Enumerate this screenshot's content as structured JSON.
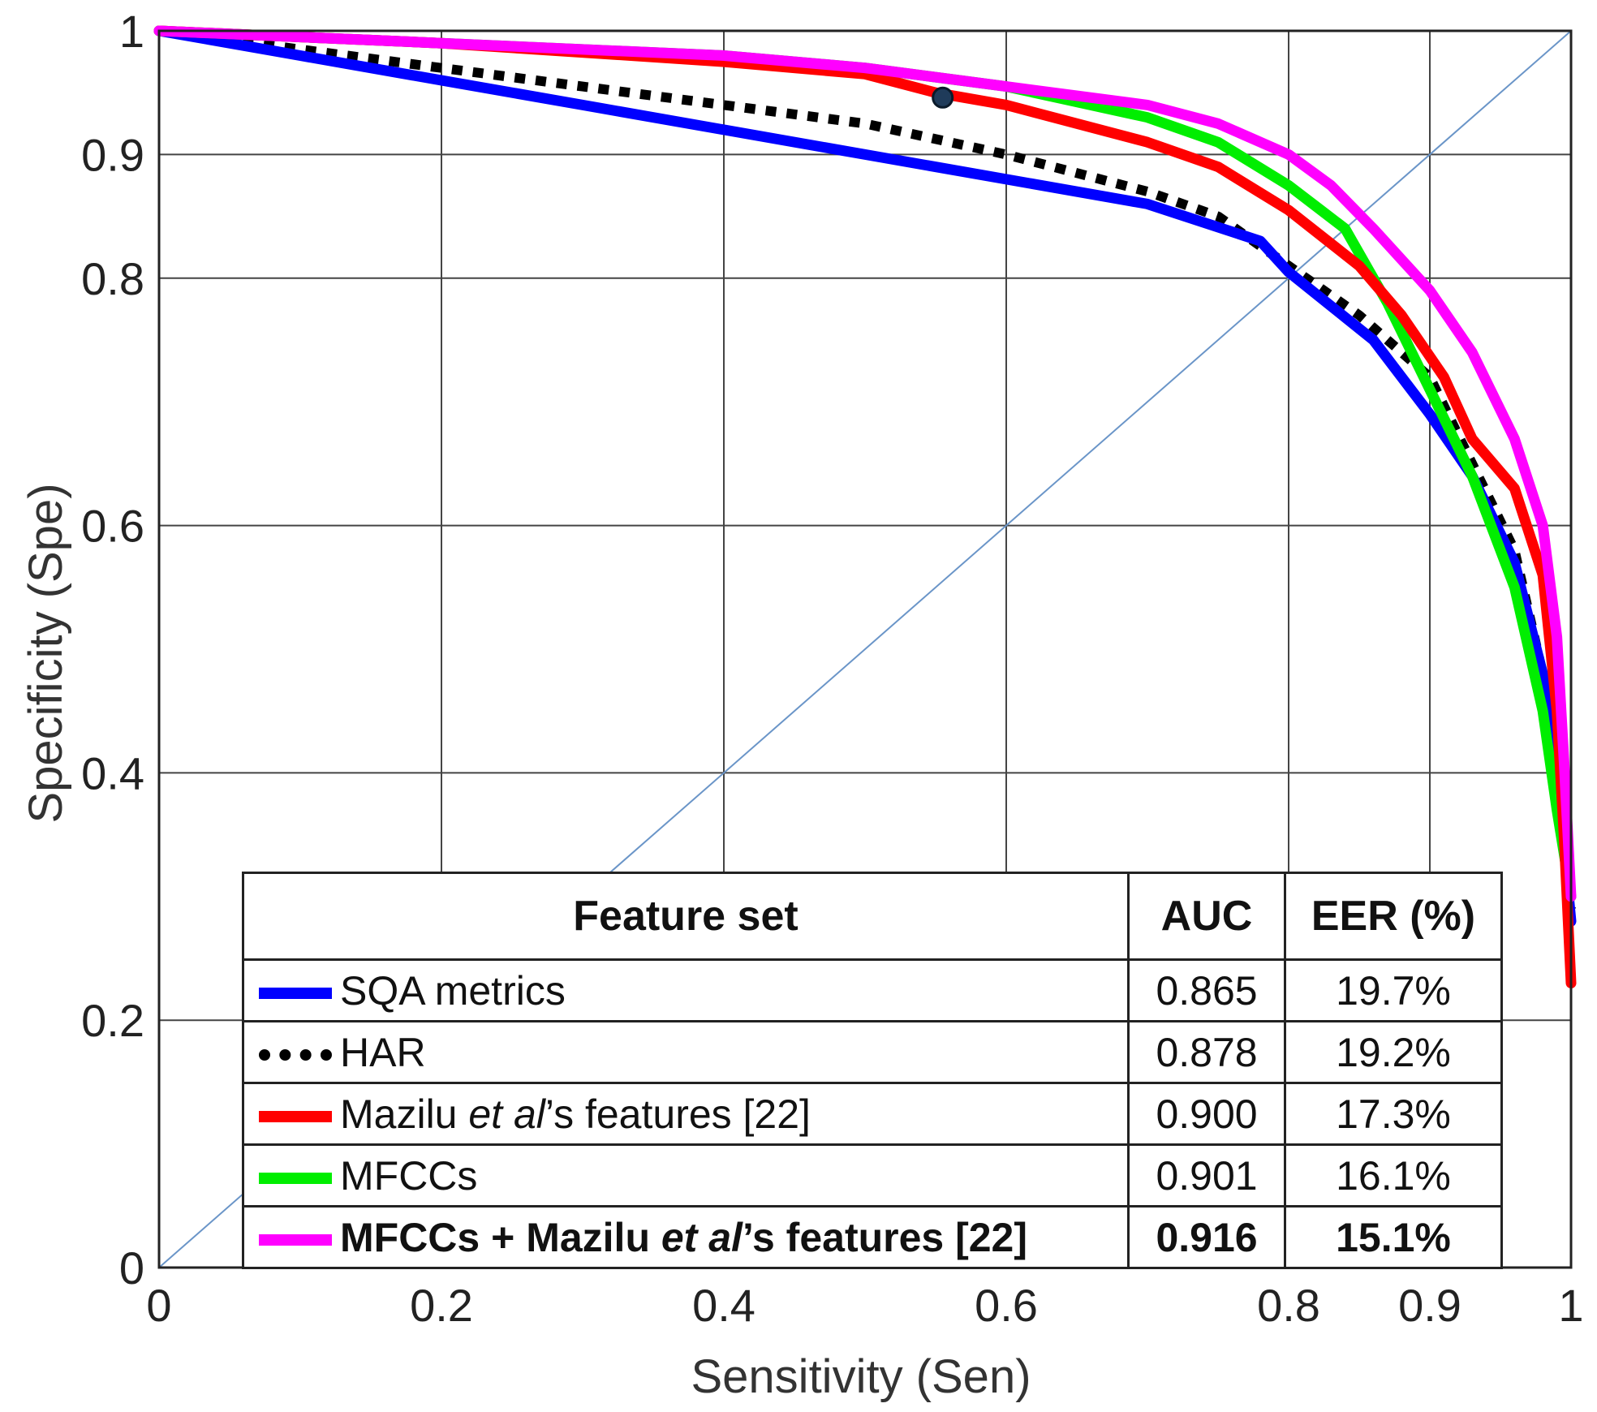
{
  "chart_data": {
    "type": "line",
    "title": "",
    "xlabel": "Sensitivity (Sen)",
    "ylabel": "Specificity (Spe)",
    "xlim": [
      0,
      1
    ],
    "ylim": [
      0,
      1
    ],
    "x_ticks": [
      0,
      0.2,
      0.4,
      0.6,
      0.8,
      0.9,
      1
    ],
    "x_tick_labels": [
      "0",
      "0.2",
      "0.4",
      "0.6",
      "0.8",
      "0.9",
      "1"
    ],
    "y_ticks": [
      0,
      0.2,
      0.4,
      0.6,
      0.8,
      0.9,
      1
    ],
    "y_tick_labels": [
      "0",
      "0.2",
      "0.4",
      "0.6",
      "0.8",
      "0.9",
      "1"
    ],
    "grid": true,
    "diagonal_reference": {
      "color": "#6a95c8",
      "points": [
        [
          0,
          0
        ],
        [
          1,
          1
        ]
      ]
    },
    "marker_point": {
      "x": 0.555,
      "y": 0.946,
      "color": "#1f3b5a"
    },
    "series": [
      {
        "key": "har",
        "color": "#000000",
        "style": "dotted",
        "points": [
          [
            0,
            1
          ],
          [
            0.1,
            0.985
          ],
          [
            0.2,
            0.97
          ],
          [
            0.3,
            0.955
          ],
          [
            0.4,
            0.94
          ],
          [
            0.5,
            0.925
          ],
          [
            0.6,
            0.9
          ],
          [
            0.7,
            0.87
          ],
          [
            0.75,
            0.85
          ],
          [
            0.8,
            0.81
          ],
          [
            0.85,
            0.77
          ],
          [
            0.9,
            0.72
          ],
          [
            0.93,
            0.65
          ],
          [
            0.96,
            0.58
          ],
          [
            0.98,
            0.48
          ],
          [
            0.99,
            0.4
          ],
          [
            1,
            0.29
          ]
        ]
      },
      {
        "key": "sqa",
        "color": "#0000ff",
        "style": "solid",
        "points": [
          [
            0,
            1
          ],
          [
            0.05,
            0.99
          ],
          [
            0.1,
            0.98
          ],
          [
            0.2,
            0.96
          ],
          [
            0.3,
            0.94
          ],
          [
            0.4,
            0.92
          ],
          [
            0.5,
            0.9
          ],
          [
            0.6,
            0.88
          ],
          [
            0.7,
            0.86
          ],
          [
            0.78,
            0.83
          ],
          [
            0.8,
            0.805
          ],
          [
            0.86,
            0.75
          ],
          [
            0.9,
            0.69
          ],
          [
            0.93,
            0.64
          ],
          [
            0.96,
            0.57
          ],
          [
            0.98,
            0.48
          ],
          [
            0.99,
            0.4
          ],
          [
            1,
            0.28
          ]
        ]
      },
      {
        "key": "mfcc",
        "color": "#00ee00",
        "style": "solid",
        "points": [
          [
            0,
            1
          ],
          [
            0.2,
            0.99
          ],
          [
            0.4,
            0.98
          ],
          [
            0.5,
            0.97
          ],
          [
            0.6,
            0.955
          ],
          [
            0.7,
            0.93
          ],
          [
            0.75,
            0.91
          ],
          [
            0.8,
            0.875
          ],
          [
            0.84,
            0.84
          ],
          [
            0.87,
            0.78
          ],
          [
            0.9,
            0.71
          ],
          [
            0.93,
            0.64
          ],
          [
            0.96,
            0.55
          ],
          [
            0.98,
            0.45
          ],
          [
            0.99,
            0.37
          ],
          [
            1,
            0.3
          ]
        ]
      },
      {
        "key": "mazilu",
        "color": "#ff0000",
        "style": "solid",
        "points": [
          [
            0,
            1
          ],
          [
            0.2,
            0.99
          ],
          [
            0.4,
            0.975
          ],
          [
            0.5,
            0.965
          ],
          [
            0.55,
            0.95
          ],
          [
            0.6,
            0.94
          ],
          [
            0.7,
            0.91
          ],
          [
            0.75,
            0.89
          ],
          [
            0.8,
            0.855
          ],
          [
            0.85,
            0.81
          ],
          [
            0.88,
            0.77
          ],
          [
            0.91,
            0.72
          ],
          [
            0.93,
            0.67
          ],
          [
            0.96,
            0.63
          ],
          [
            0.98,
            0.56
          ],
          [
            0.99,
            0.45
          ],
          [
            0.995,
            0.35
          ],
          [
            1,
            0.23
          ]
        ]
      },
      {
        "key": "combined",
        "color": "#ff00ff",
        "style": "solid",
        "points": [
          [
            0,
            1
          ],
          [
            0.2,
            0.99
          ],
          [
            0.4,
            0.98
          ],
          [
            0.5,
            0.97
          ],
          [
            0.6,
            0.955
          ],
          [
            0.7,
            0.94
          ],
          [
            0.75,
            0.925
          ],
          [
            0.8,
            0.9
          ],
          [
            0.83,
            0.875
          ],
          [
            0.86,
            0.84
          ],
          [
            0.9,
            0.79
          ],
          [
            0.93,
            0.74
          ],
          [
            0.96,
            0.67
          ],
          [
            0.98,
            0.6
          ],
          [
            0.99,
            0.51
          ],
          [
            0.995,
            0.41
          ],
          [
            1,
            0.3
          ]
        ]
      }
    ]
  },
  "legend_table": {
    "headers": {
      "feature": "Feature set",
      "auc": "AUC",
      "eer": "EER (%)"
    },
    "rows": [
      {
        "key": "sqa",
        "label": "SQA metrics",
        "auc": "0.865",
        "eer": "19.7%",
        "swatch_color": "#0000ff",
        "swatch_style": "solid"
      },
      {
        "key": "har",
        "label": "HAR",
        "auc": "0.878",
        "eer": "19.2%",
        "swatch_color": "#000000",
        "swatch_style": "dotted"
      },
      {
        "key": "mazilu",
        "label_pre": "Mazilu ",
        "label_em": "et al",
        "label_post": "’s features [22]",
        "auc": "0.900",
        "eer": "17.3%",
        "swatch_color": "#ff0000",
        "swatch_style": "solid"
      },
      {
        "key": "mfcc",
        "label": "MFCCs",
        "auc": "0.901",
        "eer": "16.1%",
        "swatch_color": "#00ee00",
        "swatch_style": "solid"
      },
      {
        "key": "combined",
        "label_pre": "MFCCs + Mazilu ",
        "label_em": "et al",
        "label_post": "’s features [22]",
        "auc": "0.916",
        "eer": "15.1%",
        "swatch_color": "#ff00ff",
        "swatch_style": "solid"
      }
    ]
  }
}
